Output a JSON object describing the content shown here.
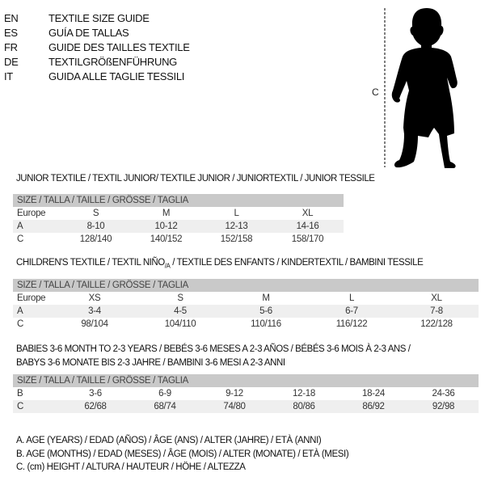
{
  "languages": [
    {
      "code": "EN",
      "title": "TEXTILE SIZE GUIDE"
    },
    {
      "code": "ES",
      "title": "GUÍA DE TALLAS"
    },
    {
      "code": "FR",
      "title": "GUIDE DES TAILLES TEXTILE"
    },
    {
      "code": "DE",
      "title": "TEXTILGRÖßENFÜHRUNG"
    },
    {
      "code": "IT",
      "title": "GUIDA ALLE TAGLIE TESSILI"
    }
  ],
  "figure": {
    "measure_label": "C",
    "icon": "child-silhouette"
  },
  "size_header": "SIZE / TALLA / TAILLE / GRÖSSE / TAGLIA",
  "junior": {
    "title": "JUNIOR TEXTILE / TEXTIL JUNIOR/ TEXTILE JUNIOR / JUNIORTEXTIL / JUNIOR TESSILE",
    "rows": [
      {
        "label": "Europe",
        "values": [
          "S",
          "M",
          "L",
          "XL"
        ]
      },
      {
        "label": "A",
        "values": [
          "8-10",
          "10-12",
          "12-13",
          "14-16"
        ]
      },
      {
        "label": "C",
        "values": [
          "128/140",
          "140/152",
          "152/158",
          "158/170"
        ]
      }
    ]
  },
  "children": {
    "title_main": "CHILDREN'S TEXTILE / TEXTIL NIÑO",
    "title_sub": "/A",
    "title_rest": " / TEXTILE DES ENFANTS / KINDERTEXTIL / BAMBINI TESSILE",
    "rows": [
      {
        "label": "Europe",
        "values": [
          "XS",
          "S",
          "M",
          "L",
          "XL"
        ]
      },
      {
        "label": "A",
        "values": [
          "3-4",
          "4-5",
          "5-6",
          "6-7",
          "7-8"
        ]
      },
      {
        "label": "C",
        "values": [
          "98/104",
          "104/110",
          "110/116",
          "116/122",
          "122/128"
        ]
      }
    ]
  },
  "babies": {
    "title_line1": "BABIES 3-6 MONTH TO 2-3 YEARS / BEBÉS 3-6 MESES A 2-3 AÑOS / BÉBÉS 3-6 MOIS À 2-3 ANS /",
    "title_line2": "BABYS 3-6 MONATE BIS 2-3 JAHRE / BAMBINI 3-6 MESI A 2-3 ANNI",
    "rows": [
      {
        "label": "B",
        "values": [
          "3-6",
          "6-9",
          "9-12",
          "12-18",
          "18-24",
          "24-36"
        ]
      },
      {
        "label": "C",
        "values": [
          "62/68",
          "68/74",
          "74/80",
          "80/86",
          "86/92",
          "92/98"
        ]
      }
    ]
  },
  "legend": [
    "A. AGE (YEARS) / EDAD (AÑOS) / ÂGE (ANS) / ALTER (JAHRE) / ETÀ (ANNI)",
    "B. AGE (MONTHS) / EDAD (MESES) / ÂGE (MOIS) / ALTER (MONATE) / ETÀ (MESI)",
    "C. (cm) HEIGHT / ALTURA / HAUTEUR / HÖHE / ALTEZZA"
  ],
  "colors": {
    "header_gray": "#c9c9c9",
    "stripe_gray": "#efefef"
  }
}
